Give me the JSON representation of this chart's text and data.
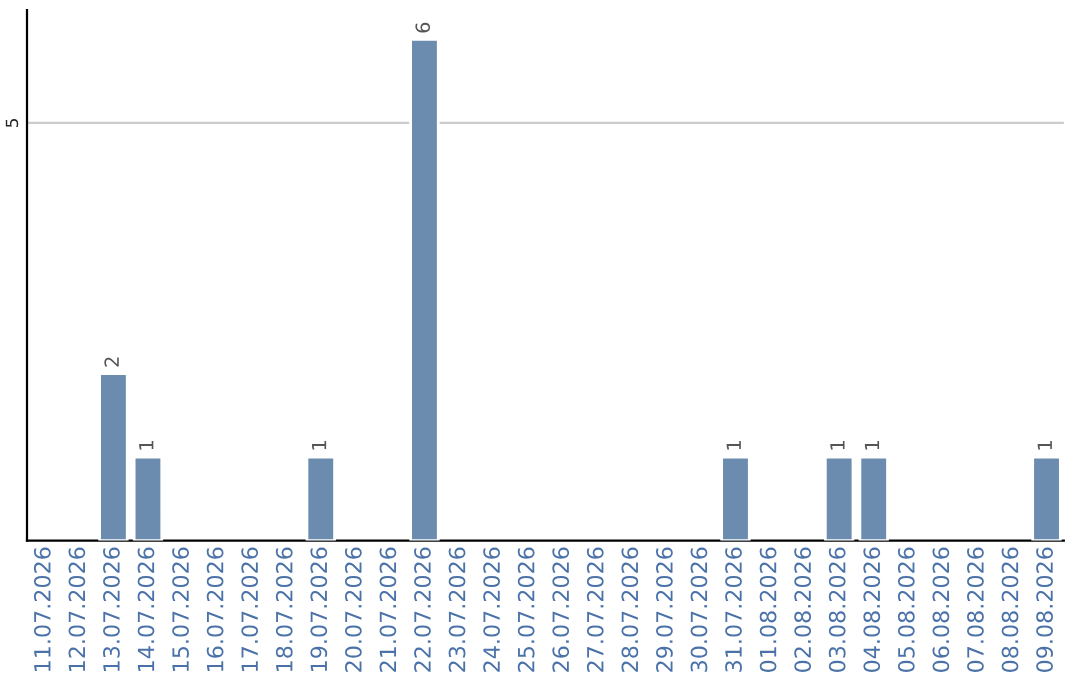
{
  "chart_data": {
    "type": "bar",
    "categories": [
      "11.07.2026",
      "12.07.2026",
      "13.07.2026",
      "14.07.2026",
      "15.07.2026",
      "16.07.2026",
      "17.07.2026",
      "18.07.2026",
      "19.07.2026",
      "20.07.2026",
      "21.07.2026",
      "22.07.2026",
      "23.07.2026",
      "24.07.2026",
      "25.07.2026",
      "26.07.2026",
      "27.07.2026",
      "28.07.2026",
      "29.07.2026",
      "30.07.2026",
      "31.07.2026",
      "01.08.2026",
      "02.08.2026",
      "03.08.2026",
      "04.08.2026",
      "05.08.2026",
      "06.08.2026",
      "07.08.2026",
      "08.08.2026",
      "09.08.2026"
    ],
    "values": [
      null,
      null,
      2,
      1,
      null,
      null,
      null,
      null,
      1,
      null,
      null,
      6,
      null,
      null,
      null,
      null,
      null,
      null,
      null,
      null,
      1,
      null,
      null,
      1,
      1,
      null,
      null,
      null,
      null,
      1
    ],
    "color": "#6b8cae",
    "ylim": [
      0,
      6.35
    ],
    "yticks": [
      5
    ],
    "grid": "y",
    "data_labels": true,
    "legend": false
  }
}
